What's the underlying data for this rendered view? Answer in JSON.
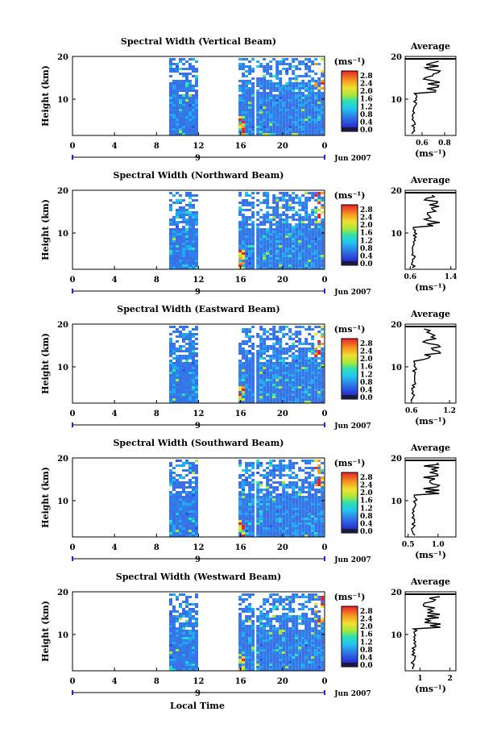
{
  "figure": {
    "footer_xlabel": "Local Time",
    "colorbar_unit": "(ms⁻¹)",
    "side_title": "Average",
    "side_xlabel": "(ms⁻¹)",
    "date_label": "Jun 2007",
    "day_label": "9",
    "height_label": "Height (km)"
  },
  "chart_data": [
    {
      "type": "heatmap",
      "title": "Spectral Width (Vertical Beam)",
      "ylabel": "Height (km)",
      "x_ticks": [
        "0",
        "4",
        "8",
        "12",
        "16",
        "20",
        "0"
      ],
      "xlim": [
        0,
        24
      ],
      "y_ticks": [
        "20",
        "10"
      ],
      "ylim": [
        1.5,
        20
      ],
      "data_segments_hours": [
        [
          9.2,
          11.8
        ],
        [
          15.8,
          17.1
        ],
        [
          17.5,
          23.8
        ]
      ],
      "colorbar": {
        "ticks": [
          "2.8",
          "2.4",
          "2.0",
          "1.6",
          "1.2",
          "0.8",
          "0.4",
          "0.0"
        ],
        "range": [
          0,
          3.0
        ]
      },
      "average_profile": {
        "x_ticks": [
          "0.6",
          "0.8"
        ],
        "xlim": [
          0.45,
          0.9
        ],
        "y_ticks": [
          "20",
          "10"
        ]
      }
    },
    {
      "type": "heatmap",
      "title": "Spectral Width (Northward Beam)",
      "ylabel": "Height (km)",
      "x_ticks": [
        "0",
        "4",
        "8",
        "12",
        "16",
        "20",
        "0"
      ],
      "xlim": [
        0,
        24
      ],
      "y_ticks": [
        "20",
        "10"
      ],
      "ylim": [
        1.5,
        20
      ],
      "data_segments_hours": [
        [
          9.2,
          11.8
        ],
        [
          15.8,
          17.1
        ],
        [
          17.5,
          23.8
        ]
      ],
      "colorbar": {
        "ticks": [
          "2.8",
          "2.4",
          "2.0",
          "1.6",
          "1.2",
          "0.8",
          "0.4",
          "0.0"
        ],
        "range": [
          0,
          3.0
        ]
      },
      "average_profile": {
        "x_ticks": [
          "0.6",
          "1.4"
        ],
        "xlim": [
          0.5,
          1.5
        ],
        "y_ticks": [
          "20",
          "10"
        ]
      }
    },
    {
      "type": "heatmap",
      "title": "Spectral Width (Eastward Beam)",
      "ylabel": "Height (km)",
      "x_ticks": [
        "0",
        "4",
        "8",
        "12",
        "16",
        "20",
        "0"
      ],
      "xlim": [
        0,
        24
      ],
      "y_ticks": [
        "20",
        "10"
      ],
      "ylim": [
        1.5,
        20
      ],
      "data_segments_hours": [
        [
          9.2,
          11.8
        ],
        [
          15.8,
          17.1
        ],
        [
          17.5,
          23.8
        ]
      ],
      "colorbar": {
        "ticks": [
          "2.8",
          "2.4",
          "2.0",
          "1.6",
          "1.2",
          "0.8",
          "0.4",
          "0.0"
        ],
        "range": [
          0,
          3.0
        ]
      },
      "average_profile": {
        "x_ticks": [
          "0.6",
          "1.2"
        ],
        "xlim": [
          0.5,
          1.3
        ],
        "y_ticks": [
          "20",
          "10"
        ]
      }
    },
    {
      "type": "heatmap",
      "title": "Spectral Width (Southward Beam)",
      "ylabel": "Height (km)",
      "x_ticks": [
        "0",
        "4",
        "8",
        "12",
        "16",
        "20",
        "0"
      ],
      "xlim": [
        0,
        24
      ],
      "y_ticks": [
        "20",
        "10"
      ],
      "ylim": [
        1.5,
        20
      ],
      "data_segments_hours": [
        [
          9.2,
          11.8
        ],
        [
          15.8,
          17.1
        ],
        [
          17.5,
          23.8
        ]
      ],
      "colorbar": {
        "ticks": [
          "2.8",
          "2.4",
          "2.0",
          "1.6",
          "1.2",
          "0.8",
          "0.4",
          "0.0"
        ],
        "range": [
          0,
          3.0
        ]
      },
      "average_profile": {
        "x_ticks": [
          "0.5",
          "1.0"
        ],
        "xlim": [
          0.45,
          1.3
        ],
        "y_ticks": [
          "20",
          "10"
        ]
      }
    },
    {
      "type": "heatmap",
      "title": "Spectral Width (Westward Beam)",
      "ylabel": "Height (km)",
      "x_ticks": [
        "0",
        "4",
        "8",
        "12",
        "16",
        "20",
        "0"
      ],
      "xlim": [
        0,
        24
      ],
      "y_ticks": [
        "20",
        "10"
      ],
      "ylim": [
        1.5,
        20
      ],
      "data_segments_hours": [
        [
          9.2,
          11.8
        ],
        [
          15.8,
          17.1
        ],
        [
          17.5,
          23.8
        ]
      ],
      "colorbar": {
        "ticks": [
          "2.8",
          "2.4",
          "2.0",
          "1.6",
          "1.2",
          "0.8",
          "0.4",
          "0.0"
        ],
        "range": [
          0,
          3.0
        ]
      },
      "average_profile": {
        "x_ticks": [
          "1",
          "2"
        ],
        "xlim": [
          0.5,
          2.2
        ],
        "y_ticks": [
          "20",
          "10"
        ]
      }
    }
  ]
}
